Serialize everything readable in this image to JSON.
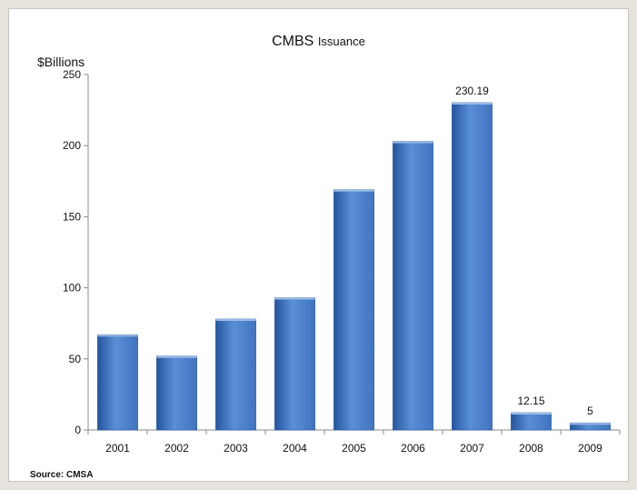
{
  "chart_data": {
    "type": "bar",
    "title_main": "CMBS",
    "title_sub": "Issuance",
    "ylabel": "$Billions",
    "xlabel": "",
    "categories": [
      "2001",
      "2002",
      "2003",
      "2004",
      "2005",
      "2006",
      "2007",
      "2008",
      "2009"
    ],
    "values": [
      67,
      52,
      78,
      93,
      169,
      203,
      230.19,
      12.15,
      5
    ],
    "data_labels": [
      "",
      "",
      "",
      "",
      "",
      "",
      "230.19",
      "12.15",
      "5"
    ],
    "ylim": [
      0,
      250
    ],
    "yticks": [
      0,
      50,
      100,
      150,
      200,
      250
    ],
    "grid": false,
    "legend": "none",
    "bar_color": "#3f74c0",
    "bar_color_dark": "#24569e",
    "bar_color_light": "#5a8fd6"
  },
  "source": "Source: CMSA"
}
